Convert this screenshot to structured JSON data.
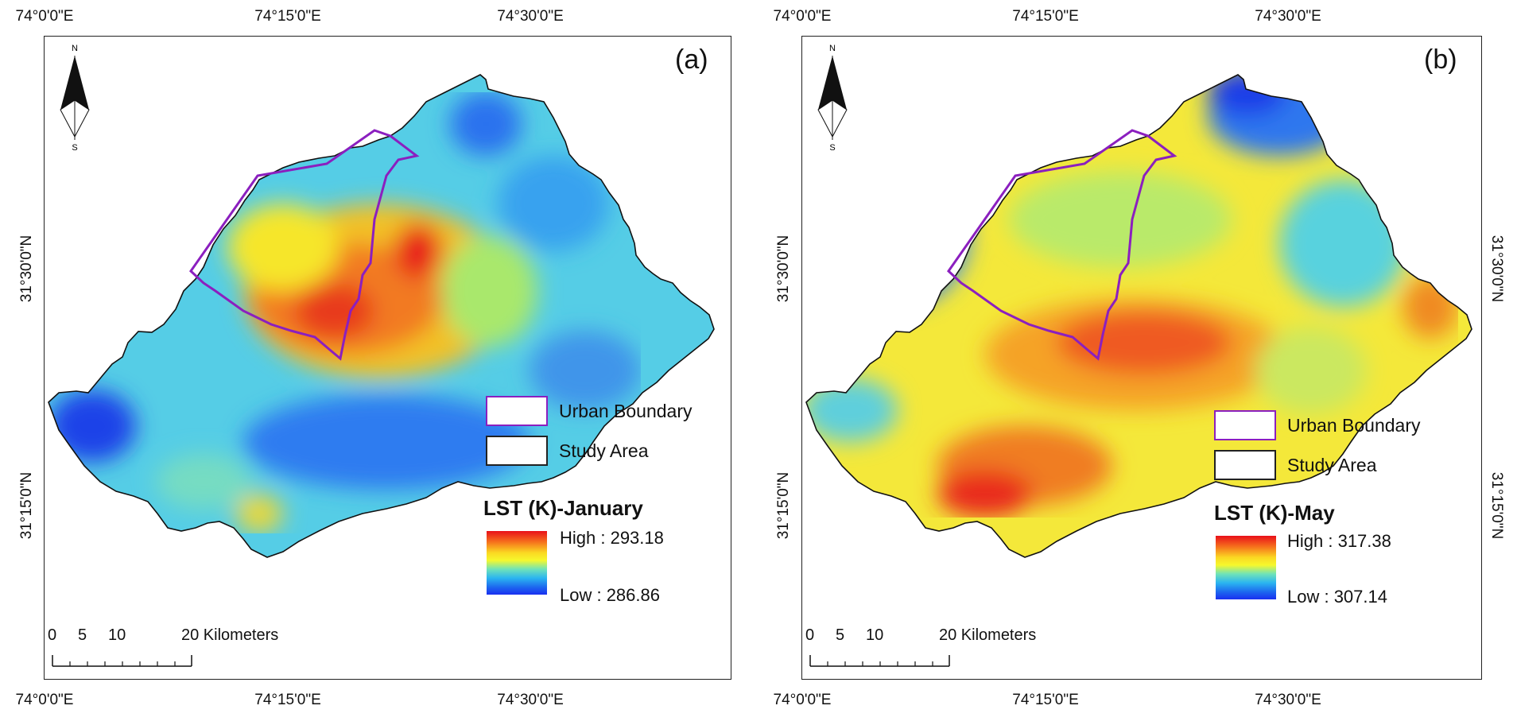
{
  "figure": {
    "panels": [
      {
        "id": "a",
        "label": "(a)",
        "top_longitudes": [
          "74°0'0\"E",
          "74°15'0\"E",
          "74°30'0\"E"
        ],
        "bottom_longitudes": [
          "74°0'0\"E",
          "74°15'0\"E",
          "74°30'0\"E"
        ],
        "left_latitudes": [
          "31°30'0\"N",
          "31°15'0\"N"
        ],
        "right_latitudes": [],
        "legend": {
          "urban_boundary": "Urban Boundary",
          "study_area": "Study Area",
          "lst_title": "LST (K)-January",
          "high": "High : 293.18",
          "low": "Low : 286.86"
        },
        "scale": {
          "ticks": [
            "0",
            "5",
            "10",
            "20 Kilometers"
          ]
        },
        "north": {
          "n": "N",
          "s": "S"
        }
      },
      {
        "id": "b",
        "label": "(b)",
        "top_longitudes": [
          "74°0'0\"E",
          "74°15'0\"E",
          "74°30'0\"E"
        ],
        "bottom_longitudes": [
          "74°0'0\"E",
          "74°15'0\"E",
          "74°30'0\"E"
        ],
        "left_latitudes": [
          "31°30'0\"N",
          "31°15'0\"N"
        ],
        "right_latitudes": [
          "31°30'0\"N",
          "31°15'0\"N"
        ],
        "legend": {
          "urban_boundary": "Urban Boundary",
          "study_area": "Study Area",
          "lst_title": "LST (K)-May",
          "high": "High : 317.38",
          "low": "Low : 307.14"
        },
        "scale": {
          "ticks": [
            "0",
            "5",
            "10",
            "20 Kilometers"
          ]
        },
        "north": {
          "n": "N",
          "s": "S"
        }
      }
    ],
    "colors": {
      "urban_boundary": "#8b1fbf",
      "study_area": "#111111",
      "ramp_high": "#e8101a",
      "ramp_mid": "#f6f82c",
      "ramp_low": "#1a2ff0"
    }
  }
}
